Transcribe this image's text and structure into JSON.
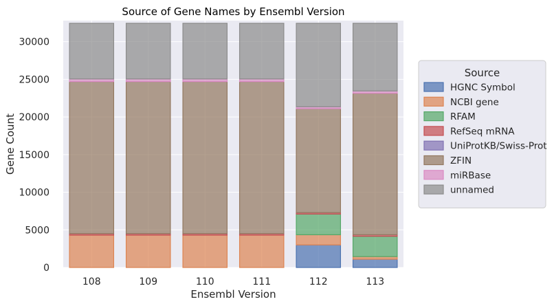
{
  "chart_data": {
    "type": "bar",
    "stacked": true,
    "title": "Source of Gene Names by Ensembl Version",
    "xlabel": "Ensembl Version",
    "ylabel": "Gene Count",
    "categories": [
      "108",
      "109",
      "110",
      "111",
      "112",
      "113"
    ],
    "ylim": [
      0,
      32800
    ],
    "yticks": [
      0,
      5000,
      10000,
      15000,
      20000,
      25000,
      30000
    ],
    "grid": true,
    "legend": {
      "title": "Source",
      "placement": "right"
    },
    "series": [
      {
        "name": "HGNC Symbol",
        "color": "#4c72b0",
        "values": [
          0,
          0,
          0,
          0,
          3000,
          1100
        ]
      },
      {
        "name": "NCBI gene",
        "color": "#dd8452",
        "values": [
          4300,
          4300,
          4300,
          4300,
          1350,
          350
        ]
      },
      {
        "name": "RFAM",
        "color": "#55a868",
        "values": [
          0,
          0,
          0,
          0,
          2750,
          2700
        ]
      },
      {
        "name": "RefSeq mRNA",
        "color": "#c44e52",
        "values": [
          200,
          200,
          200,
          200,
          200,
          200
        ]
      },
      {
        "name": "UniProtKB/Swiss-Prot",
        "color": "#8172b3",
        "values": [
          0,
          0,
          0,
          0,
          0,
          0
        ]
      },
      {
        "name": "ZFIN",
        "color": "#937860",
        "values": [
          20200,
          20200,
          20200,
          20200,
          13800,
          18800
        ]
      },
      {
        "name": "miRBase",
        "color": "#da8bc3",
        "values": [
          350,
          350,
          350,
          350,
          250,
          300
        ]
      },
      {
        "name": "unnamed",
        "color": "#8c8c8c",
        "values": [
          7400,
          7400,
          7400,
          7400,
          11100,
          9000
        ]
      }
    ]
  }
}
